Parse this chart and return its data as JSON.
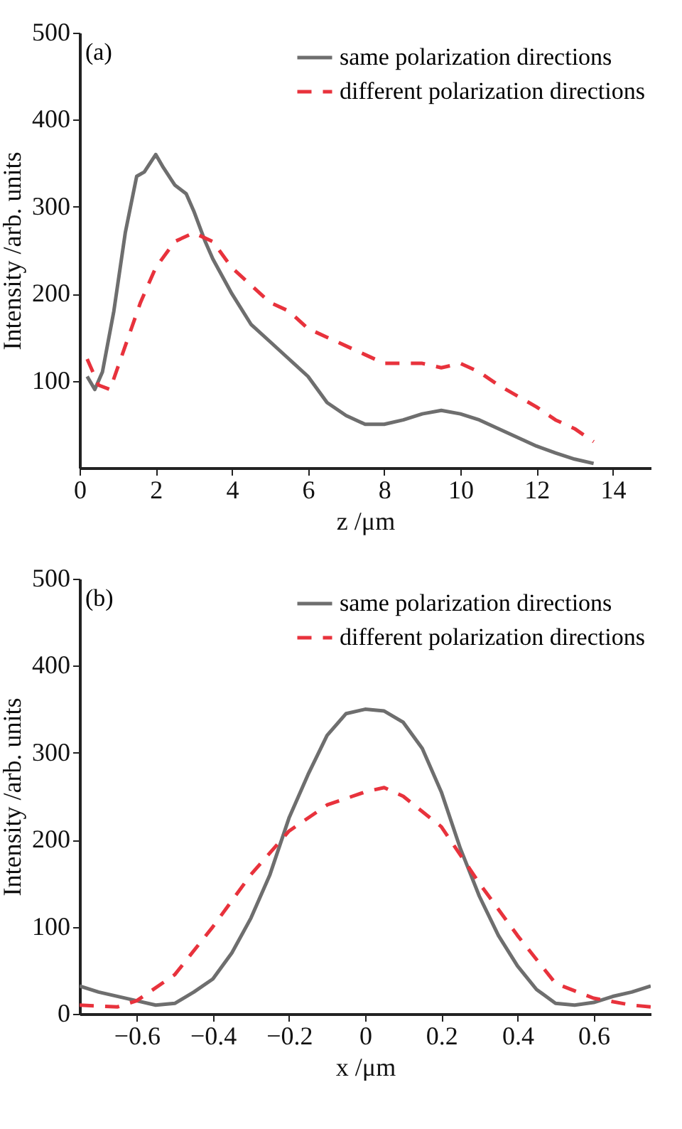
{
  "chart_data": [
    {
      "type": "line",
      "annotations": [
        "(a)"
      ],
      "xlabel": "z /μm",
      "ylabel": "Intensity /arb. units",
      "xlim": [
        0,
        15
      ],
      "xticks": [
        0,
        2,
        4,
        6,
        8,
        10,
        12,
        14
      ],
      "ylim": [
        0,
        500
      ],
      "yticks": [
        100,
        200,
        300,
        400,
        500
      ],
      "grid": false,
      "legend": "top right",
      "series": [
        {
          "name": "same polarization directions",
          "color": "#6e6e6e",
          "line_style": "solid",
          "x": [
            0.2,
            0.4,
            0.6,
            0.9,
            1.2,
            1.5,
            1.7,
            2.0,
            2.2,
            2.5,
            2.8,
            3.0,
            3.3,
            3.5,
            4,
            4.5,
            5,
            5.5,
            6,
            6.5,
            7,
            7.5,
            8,
            8.5,
            9,
            9.5,
            10,
            10.5,
            11,
            11.5,
            12,
            12.5,
            13,
            13.5
          ],
          "values": [
            105,
            90,
            110,
            180,
            270,
            335,
            340,
            360,
            345,
            325,
            315,
            295,
            260,
            240,
            200,
            165,
            145,
            125,
            105,
            75,
            60,
            50,
            50,
            55,
            62,
            66,
            62,
            55,
            45,
            35,
            25,
            17,
            10,
            5
          ]
        },
        {
          "name": "different polarization directions",
          "color": "#e8323c",
          "line_style": "dashed",
          "x": [
            0.2,
            0.5,
            0.8,
            1.2,
            1.6,
            2.0,
            2.5,
            3.0,
            3.5,
            4,
            4.5,
            5,
            5.5,
            6,
            6.5,
            7,
            7.5,
            8,
            9,
            9.5,
            10,
            10.5,
            11,
            12,
            12.5,
            13,
            13.5
          ],
          "values": [
            125,
            95,
            90,
            140,
            190,
            230,
            260,
            270,
            260,
            230,
            210,
            190,
            180,
            160,
            150,
            140,
            130,
            120,
            120,
            115,
            120,
            110,
            95,
            70,
            55,
            45,
            30
          ]
        }
      ]
    },
    {
      "type": "line",
      "annotations": [
        "(b)"
      ],
      "xlabel": "x /μm",
      "ylabel": "Intensity /arb. units",
      "xlim": [
        -0.75,
        0.75
      ],
      "xticks": [
        {
          "value": -0.6,
          "label": "−0.6"
        },
        {
          "value": -0.4,
          "label": "−0.4"
        },
        {
          "value": -0.2,
          "label": "−0.2"
        },
        0,
        0.2,
        0.4,
        0.6
      ],
      "ylim": [
        0,
        500
      ],
      "yticks": [
        0,
        100,
        200,
        300,
        400,
        500
      ],
      "grid": false,
      "legend": "top right",
      "series": [
        {
          "name": "same polarization directions",
          "color": "#6e6e6e",
          "line_style": "solid",
          "x": [
            -0.75,
            -0.7,
            -0.6,
            -0.55,
            -0.5,
            -0.45,
            -0.4,
            -0.35,
            -0.3,
            -0.25,
            -0.2,
            -0.15,
            -0.1,
            -0.05,
            0,
            0.05,
            0.1,
            0.15,
            0.2,
            0.25,
            0.3,
            0.35,
            0.4,
            0.45,
            0.5,
            0.55,
            0.6,
            0.65,
            0.7,
            0.75
          ],
          "values": [
            32,
            25,
            15,
            10,
            12,
            25,
            40,
            70,
            110,
            160,
            225,
            275,
            320,
            345,
            350,
            348,
            335,
            305,
            255,
            190,
            135,
            90,
            55,
            28,
            12,
            10,
            13,
            20,
            25,
            32
          ]
        },
        {
          "name": "different polarization directions",
          "color": "#e8323c",
          "line_style": "dashed",
          "x": [
            -0.75,
            -0.65,
            -0.6,
            -0.5,
            -0.4,
            -0.3,
            -0.2,
            -0.1,
            0,
            0.05,
            0.1,
            0.2,
            0.3,
            0.4,
            0.5,
            0.6,
            0.7,
            0.75
          ],
          "values": [
            10,
            8,
            15,
            45,
            100,
            160,
            210,
            240,
            255,
            260,
            250,
            215,
            150,
            90,
            35,
            18,
            10,
            8
          ]
        }
      ]
    }
  ]
}
